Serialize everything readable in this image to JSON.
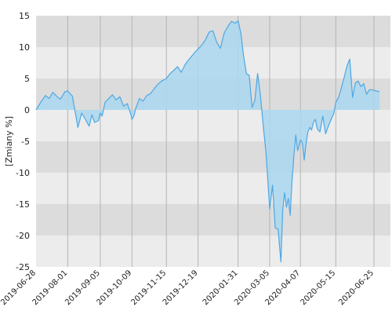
{
  "chart_data": {
    "type": "area",
    "ylabel": "[Zmiany %]",
    "ylim": [
      -25,
      15
    ],
    "y_ticks": [
      "15",
      "10",
      "5",
      "0",
      "-5",
      "-10",
      "-15",
      "-20",
      "-25"
    ],
    "x_ticks": [
      "2019-06-28",
      "2019-08-01",
      "2019-09-05",
      "2019-10-09",
      "2019-11-15",
      "2019-12-19",
      "2020-01-31",
      "2020-03-05",
      "2020-04-07",
      "2020-05-15",
      "2020-06-25"
    ],
    "grid": true,
    "series": [
      {
        "x": [
          "2019-06-28",
          "2019-07-03",
          "2019-07-08",
          "2019-07-12",
          "2019-07-16",
          "2019-07-20",
          "2019-07-24",
          "2019-07-29",
          "2019-08-01",
          "2019-08-06",
          "2019-08-08",
          "2019-08-12",
          "2019-08-16",
          "2019-08-20",
          "2019-08-24",
          "2019-08-27",
          "2019-08-30",
          "2019-09-03",
          "2019-09-05",
          "2019-09-07",
          "2019-09-10",
          "2019-09-14",
          "2019-09-18",
          "2019-09-22",
          "2019-09-26",
          "2019-09-30",
          "2019-10-04",
          "2019-10-08",
          "2019-10-09",
          "2019-10-11",
          "2019-10-13",
          "2019-10-17",
          "2019-10-21",
          "2019-10-25",
          "2019-10-29",
          "2019-11-02",
          "2019-11-06",
          "2019-11-10",
          "2019-11-15",
          "2019-11-19",
          "2019-11-23",
          "2019-11-27",
          "2019-12-01",
          "2019-12-05",
          "2019-12-09",
          "2019-12-13",
          "2019-12-17",
          "2019-12-19",
          "2019-12-23",
          "2019-12-27",
          "2019-12-31",
          "2020-01-04",
          "2020-01-08",
          "2020-01-12",
          "2020-01-16",
          "2020-01-20",
          "2020-01-24",
          "2020-01-28",
          "2020-01-31",
          "2020-02-03",
          "2020-02-06",
          "2020-02-09",
          "2020-02-12",
          "2020-02-15",
          "2020-02-18",
          "2020-02-21",
          "2020-02-24",
          "2020-02-27",
          "2020-03-01",
          "2020-03-05",
          "2020-03-08",
          "2020-03-11",
          "2020-03-14",
          "2020-03-17",
          "2020-03-19",
          "2020-03-21",
          "2020-03-23",
          "2020-03-25",
          "2020-03-27",
          "2020-03-29",
          "2020-03-31",
          "2020-04-02",
          "2020-04-04",
          "2020-04-07",
          "2020-04-09",
          "2020-04-11",
          "2020-04-13",
          "2020-04-15",
          "2020-04-17",
          "2020-04-19",
          "2020-04-21",
          "2020-04-23",
          "2020-04-25",
          "2020-04-28",
          "2020-05-01",
          "2020-05-04",
          "2020-05-07",
          "2020-05-10",
          "2020-05-13",
          "2020-05-15",
          "2020-05-18",
          "2020-05-21",
          "2020-05-24",
          "2020-05-27",
          "2020-05-30",
          "2020-06-02",
          "2020-06-05",
          "2020-06-08",
          "2020-06-11",
          "2020-06-14",
          "2020-06-17",
          "2020-06-20",
          "2020-06-23",
          "2020-06-25",
          "2020-06-28",
          "2020-07-01"
        ],
        "values": [
          0,
          1.2,
          2.3,
          1.8,
          2.8,
          2.2,
          1.7,
          2.9,
          3.0,
          2.2,
          0.5,
          -2.8,
          -0.5,
          -1.5,
          -2.6,
          -0.8,
          -2.0,
          -1.7,
          -0.5,
          -1.0,
          1.2,
          1.8,
          2.4,
          1.6,
          2.1,
          0.6,
          1.0,
          -0.8,
          -1.5,
          -1.0,
          0.2,
          1.8,
          1.4,
          2.3,
          2.6,
          3.4,
          4.1,
          4.6,
          5.0,
          5.8,
          6.3,
          6.9,
          6.0,
          7.2,
          8.0,
          8.7,
          9.4,
          9.7,
          10.3,
          11.2,
          12.4,
          12.6,
          10.8,
          9.8,
          12.2,
          13.3,
          14.1,
          13.8,
          14.2,
          12.2,
          8.5,
          5.8,
          5.5,
          0.4,
          1.5,
          5.8,
          2.4,
          -2.5,
          -6.8,
          -15.8,
          -12.0,
          -18.8,
          -19.0,
          -24.2,
          -16.0,
          -13.2,
          -15.5,
          -14.1,
          -16.8,
          -11.3,
          -7.2,
          -4.0,
          -6.5,
          -4.8,
          -5.2,
          -8.0,
          -5.5,
          -3.5,
          -2.8,
          -3.2,
          -2.0,
          -1.5,
          -3.0,
          -3.5,
          -1.0,
          -3.8,
          -2.6,
          -1.5,
          -0.5,
          1.2,
          2.0,
          3.5,
          5.2,
          7.0,
          8.1,
          2.0,
          4.3,
          4.6,
          3.7,
          4.2,
          2.5,
          3.2,
          3.2,
          3.1,
          3.0,
          2.9
        ]
      }
    ]
  },
  "colors": {
    "line": "#4ea7e4",
    "fill": "#a9d7ee",
    "band_dark": "#dcdcdc",
    "band_light": "#ececec",
    "grid": "#b4b4b4"
  }
}
